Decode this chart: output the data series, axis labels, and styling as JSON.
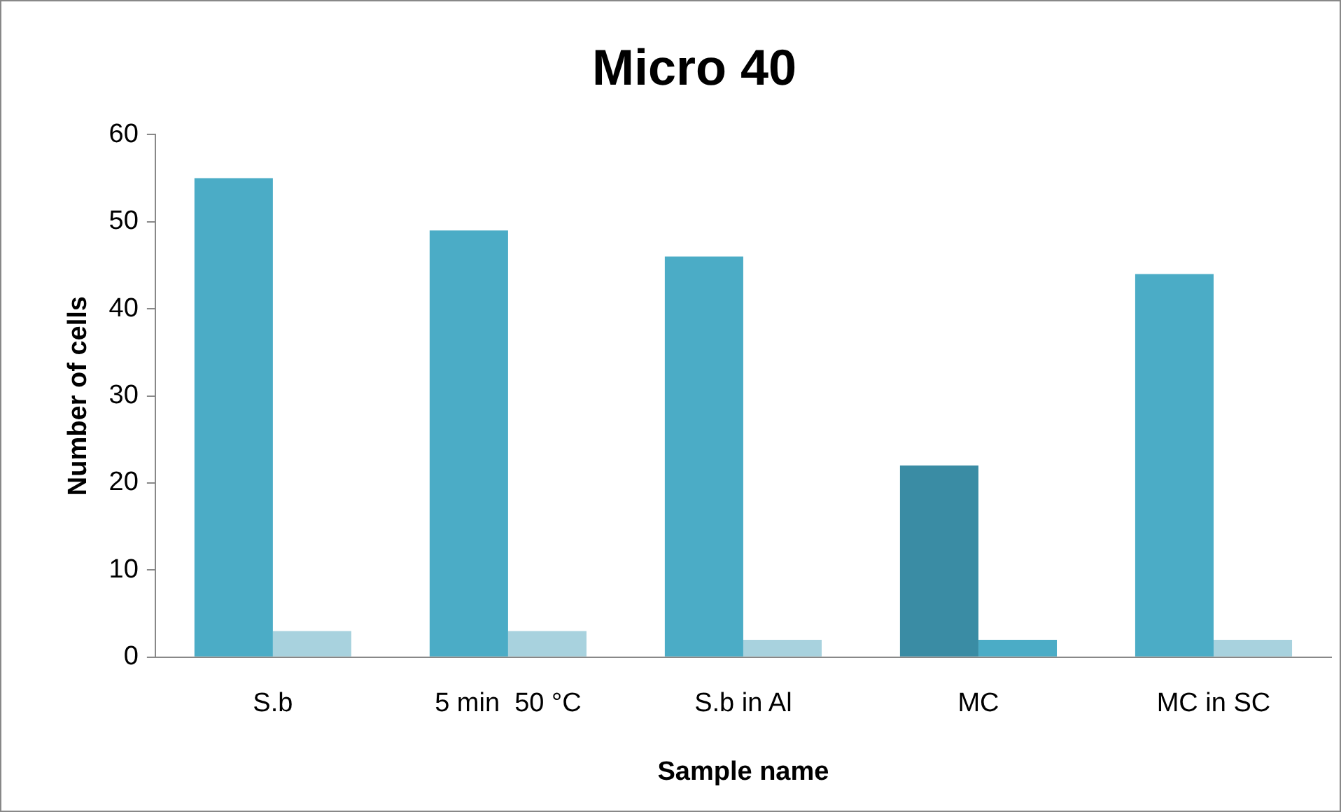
{
  "chart_data": {
    "type": "bar",
    "title": "Micro 40",
    "xlabel": "Sample name",
    "ylabel": "Number of cells",
    "categories": [
      "S.b",
      "5 min  50 °C",
      "S.b in Al",
      "MC",
      "MC in SC"
    ],
    "series": [
      {
        "colors": [
          "#4bacc6",
          "#4bacc6",
          "#4bacc6",
          "#3a8ca4",
          "#4bacc6"
        ],
        "values": [
          55,
          49,
          46,
          22,
          44
        ]
      },
      {
        "colors": [
          "#a8d2de",
          "#a8d2de",
          "#a8d2de",
          "#4bacc6",
          "#a8d2de"
        ],
        "values": [
          3,
          3,
          2,
          2,
          2
        ]
      }
    ],
    "ylim": [
      0,
      60
    ],
    "yticks": [
      0,
      10,
      20,
      30,
      40,
      50,
      60
    ],
    "grid": false,
    "legend": false
  }
}
